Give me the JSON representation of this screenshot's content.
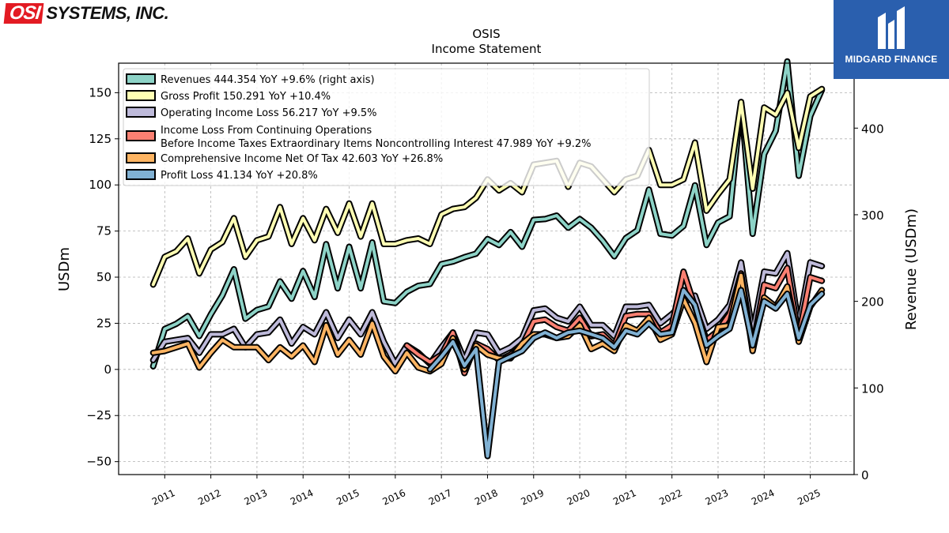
{
  "brand": {
    "mark": "OSI",
    "name": "SYSTEMS, INC."
  },
  "badge": {
    "name": "MIDGARD FINANCE"
  },
  "chart_data": {
    "type": "line",
    "title": "OSIS",
    "subtitle": "Income Statement",
    "ylabel": "USDm",
    "y2label": "Revenue (USDm)",
    "ylim": [
      -57,
      166
    ],
    "y2lim": [
      0,
      475
    ],
    "yticks": [
      -50,
      -25,
      0,
      25,
      50,
      75,
      100,
      125,
      150
    ],
    "y2ticks": [
      0,
      100,
      200,
      300,
      400
    ],
    "xlim": [
      2010.0,
      2025.95
    ],
    "xticks": [
      "2011",
      "2012",
      "2013",
      "2014",
      "2015",
      "2016",
      "2017",
      "2018",
      "2019",
      "2020",
      "2021",
      "2022",
      "2023",
      "2024",
      "2025"
    ],
    "grid": true,
    "legend_position": "top-left",
    "series": [
      {
        "name": "Revenues",
        "legend": "Revenues  444.354 YoY +9.6% (right axis)",
        "axis": "right",
        "color": "#8dd3c7",
        "x": [
          2010.75,
          2011.0,
          2011.25,
          2011.5,
          2011.75,
          2012.0,
          2012.25,
          2012.5,
          2012.75,
          2013.0,
          2013.25,
          2013.5,
          2013.75,
          2014.0,
          2014.25,
          2014.5,
          2014.75,
          2015.0,
          2015.25,
          2015.5,
          2015.75,
          2016.0,
          2016.25,
          2016.5,
          2016.75,
          2017.0,
          2017.25,
          2017.5,
          2017.75,
          2018.0,
          2018.25,
          2018.5,
          2018.75,
          2019.0,
          2019.25,
          2019.5,
          2019.75,
          2020.0,
          2020.25,
          2020.5,
          2020.75,
          2021.0,
          2021.25,
          2021.5,
          2021.75,
          2022.0,
          2022.25,
          2022.5,
          2022.75,
          2023.0,
          2023.25,
          2023.5,
          2023.75,
          2024.0,
          2024.25,
          2024.5,
          2024.75,
          2025.0,
          2025.25
        ],
        "values": [
          125,
          168,
          174,
          183,
          160,
          185,
          207,
          237,
          180,
          190,
          194,
          223,
          203,
          235,
          205,
          266,
          215,
          263,
          215,
          268,
          200,
          198,
          211,
          218,
          220,
          243,
          246,
          251,
          255,
          272,
          265,
          280,
          263,
          294,
          295,
          299,
          285,
          295,
          285,
          270,
          252,
          273,
          282,
          329,
          278,
          276,
          287,
          334,
          265,
          291,
          298,
          430,
          278,
          370,
          397,
          477,
          345,
          414,
          444
        ]
      },
      {
        "name": "Gross Profit",
        "legend": "Gross Profit  150.291 YoY +10.4%",
        "axis": "left",
        "color": "#ffffb3",
        "x": [
          2010.75,
          2011.0,
          2011.25,
          2011.5,
          2011.75,
          2012.0,
          2012.25,
          2012.5,
          2012.75,
          2013.0,
          2013.25,
          2013.5,
          2013.75,
          2014.0,
          2014.25,
          2014.5,
          2014.75,
          2015.0,
          2015.25,
          2015.5,
          2015.75,
          2016.0,
          2016.25,
          2016.5,
          2016.75,
          2017.0,
          2017.25,
          2017.5,
          2017.75,
          2018.0,
          2018.25,
          2018.5,
          2018.75,
          2019.0,
          2019.25,
          2019.5,
          2019.75,
          2020.0,
          2020.25,
          2020.5,
          2020.75,
          2021.0,
          2021.25,
          2021.5,
          2021.75,
          2022.0,
          2022.25,
          2022.5,
          2022.75,
          2023.0,
          2023.25,
          2023.5,
          2023.75,
          2024.0,
          2024.25,
          2024.5,
          2024.75,
          2025.0,
          2025.25
        ],
        "values": [
          46,
          61,
          64,
          71,
          52,
          65,
          69,
          82,
          61,
          70,
          72,
          88,
          68,
          82,
          70,
          87,
          74,
          90,
          72,
          90,
          68,
          68,
          70,
          71,
          68,
          84,
          87,
          88,
          93,
          103,
          97,
          101,
          96,
          111,
          112,
          113,
          99,
          112,
          110,
          103,
          96,
          103,
          105,
          119,
          100,
          100,
          103,
          123,
          86,
          95,
          103,
          145,
          98,
          142,
          138,
          150,
          120,
          148,
          152
        ]
      },
      {
        "name": "Operating Income Loss",
        "legend": "Operating Income Loss  56.217 YoY +9.5%",
        "axis": "left",
        "color": "#bebada",
        "x": [
          2010.75,
          2011.0,
          2011.25,
          2011.5,
          2011.75,
          2012.0,
          2012.25,
          2012.5,
          2012.75,
          2013.0,
          2013.25,
          2013.5,
          2013.75,
          2014.0,
          2014.25,
          2014.5,
          2014.75,
          2015.0,
          2015.25,
          2015.5,
          2015.75,
          2016.0,
          2016.25,
          2016.5,
          2016.75,
          2017.0,
          2017.25,
          2017.5,
          2017.75,
          2018.0,
          2018.25,
          2018.5,
          2018.75,
          2019.0,
          2019.25,
          2019.5,
          2019.75,
          2020.0,
          2020.25,
          2020.5,
          2020.75,
          2021.0,
          2021.25,
          2021.5,
          2021.75,
          2022.0,
          2022.25,
          2022.5,
          2022.75,
          2023.0,
          2023.25,
          2023.5,
          2023.75,
          2024.0,
          2024.25,
          2024.5,
          2024.75,
          2025.0,
          2025.25
        ],
        "values": [
          5,
          15,
          16,
          17,
          9,
          19,
          19,
          22,
          12,
          19,
          20,
          27,
          14,
          23,
          19,
          31,
          17,
          27,
          19,
          31,
          15,
          3,
          13,
          9,
          3,
          12,
          20,
          5,
          20,
          19,
          9,
          12,
          17,
          32,
          33,
          28,
          26,
          34,
          24,
          24,
          18,
          34,
          34,
          35,
          25,
          30,
          36,
          40,
          22,
          27,
          35,
          58,
          20,
          53,
          52,
          63,
          24,
          58,
          56
        ]
      },
      {
        "name": "Income Loss From Continuing Operations Before Income Taxes Extraordinary Items Noncontrolling Interest",
        "legend_lines": [
          "Income Loss From Continuing Operations",
          "Before Income Taxes Extraordinary Items Noncontrolling Interest  47.989 YoY +9.2%"
        ],
        "axis": "left",
        "color": "#fb8072",
        "x": [
          2016.25,
          2016.5,
          2016.75,
          2017.0,
          2017.25,
          2017.5,
          2017.75,
          2018.0,
          2018.25,
          2018.5,
          2018.75,
          2019.0,
          2019.25,
          2019.5,
          2019.75,
          2020.0,
          2020.25,
          2020.5,
          2020.75,
          2021.0,
          2021.25,
          2021.5,
          2021.75,
          2022.0,
          2022.25,
          2022.5,
          2022.75,
          2023.0,
          2023.25,
          2023.5,
          2023.75,
          2024.0,
          2024.25,
          2024.5,
          2024.75,
          2025.0,
          2025.25
        ],
        "values": [
          13,
          8,
          4,
          8,
          20,
          -2,
          14,
          11,
          5,
          8,
          13,
          26,
          27,
          23,
          21,
          28,
          18,
          19,
          13,
          29,
          30,
          30,
          20,
          24,
          53,
          34,
          16,
          21,
          30,
          52,
          12,
          46,
          44,
          55,
          18,
          50,
          48
        ]
      },
      {
        "name": "Comprehensive Income Net Of Tax",
        "legend": "Comprehensive Income Net Of Tax  42.603 YoY +26.8%",
        "axis": "left",
        "color": "#fdb462",
        "x": [
          2010.75,
          2011.0,
          2011.25,
          2011.5,
          2011.75,
          2012.0,
          2012.25,
          2012.5,
          2012.75,
          2013.0,
          2013.25,
          2013.5,
          2013.75,
          2014.0,
          2014.25,
          2014.5,
          2014.75,
          2015.0,
          2015.25,
          2015.5,
          2015.75,
          2016.0,
          2016.25,
          2016.5,
          2016.75,
          2017.0,
          2017.25,
          2017.5,
          2017.75,
          2018.0,
          2018.25,
          2018.5,
          2018.75,
          2019.0,
          2019.25,
          2019.5,
          2019.75,
          2020.0,
          2020.25,
          2020.5,
          2020.75,
          2021.0,
          2021.25,
          2021.5,
          2021.75,
          2022.0,
          2022.25,
          2022.5,
          2022.75,
          2023.0,
          2023.25,
          2023.5,
          2023.75,
          2024.0,
          2024.25,
          2024.5,
          2024.75,
          2025.0,
          2025.25
        ],
        "values": [
          9,
          10,
          12,
          14,
          1,
          9,
          16,
          12,
          12,
          12,
          5,
          12,
          7,
          13,
          4,
          24,
          8,
          16,
          8,
          25,
          7,
          -1,
          9,
          1,
          -1,
          3,
          17,
          0,
          13,
          8,
          6,
          6,
          14,
          19,
          19,
          17,
          18,
          24,
          11,
          14,
          10,
          24,
          21,
          28,
          16,
          19,
          38,
          25,
          4,
          23,
          24,
          51,
          10,
          39,
          34,
          45,
          15,
          34,
          43
        ]
      },
      {
        "name": "Profit Loss",
        "legend": "Profit Loss  41.134 YoY +20.8%",
        "axis": "left",
        "color": "#80b1d3",
        "x": [
          2016.75,
          2017.0,
          2017.25,
          2017.5,
          2017.75,
          2018.0,
          2018.25,
          2018.5,
          2018.75,
          2019.0,
          2019.25,
          2019.5,
          2019.75,
          2020.0,
          2020.25,
          2020.5,
          2020.75,
          2021.0,
          2021.25,
          2021.5,
          2021.75,
          2022.0,
          2022.25,
          2022.5,
          2022.75,
          2023.0,
          2023.25,
          2023.5,
          2023.75,
          2024.0,
          2024.25,
          2024.5,
          2024.75,
          2025.0,
          2025.25
        ],
        "values": [
          0,
          7,
          15,
          2,
          11,
          -47,
          4,
          7,
          10,
          17,
          20,
          17,
          20,
          21,
          19,
          17,
          12,
          21,
          19,
          25,
          19,
          20,
          43,
          35,
          13,
          18,
          22,
          43,
          13,
          37,
          33,
          41,
          17,
          35,
          41
        ]
      }
    ]
  }
}
